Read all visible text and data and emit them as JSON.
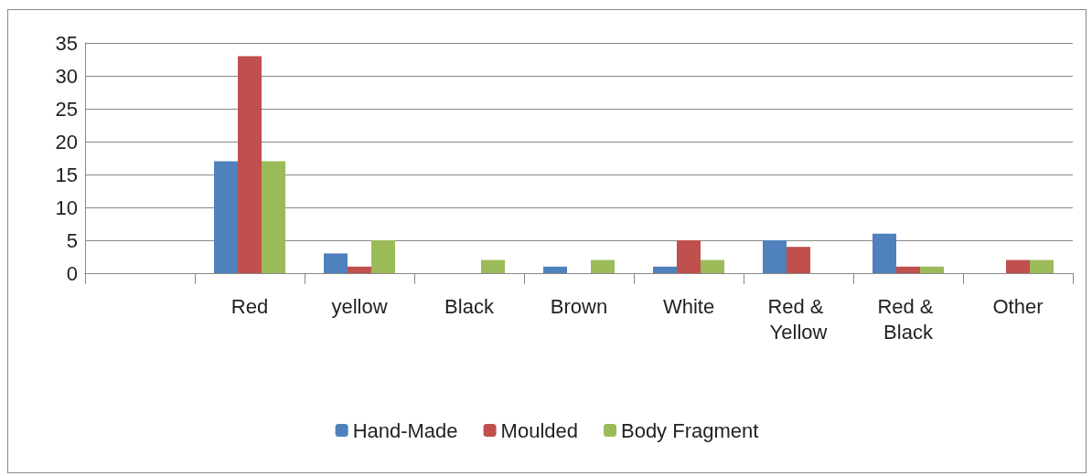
{
  "chart_data": {
    "type": "bar",
    "categories": [
      null,
      "Red",
      "yellow",
      "Black",
      "Brown",
      "White",
      "Red & Yellow",
      "Red & Black",
      "Other"
    ],
    "series": [
      {
        "name": "Hand-Made",
        "color": "#4f81bd",
        "values": [
          null,
          17,
          3,
          0,
          1,
          1,
          5,
          6,
          0
        ]
      },
      {
        "name": "Moulded",
        "color": "#c0504d",
        "values": [
          null,
          33,
          1,
          0,
          0,
          5,
          4,
          1,
          2
        ]
      },
      {
        "name": "Body Fragment",
        "color": "#9bbb59",
        "values": [
          null,
          17,
          5,
          2,
          2,
          2,
          0,
          1,
          2
        ]
      }
    ],
    "ylim": [
      0,
      35
    ],
    "yticks": [
      0,
      5,
      10,
      15,
      20,
      25,
      30,
      35
    ],
    "grid": "y",
    "legend": "bottom"
  }
}
